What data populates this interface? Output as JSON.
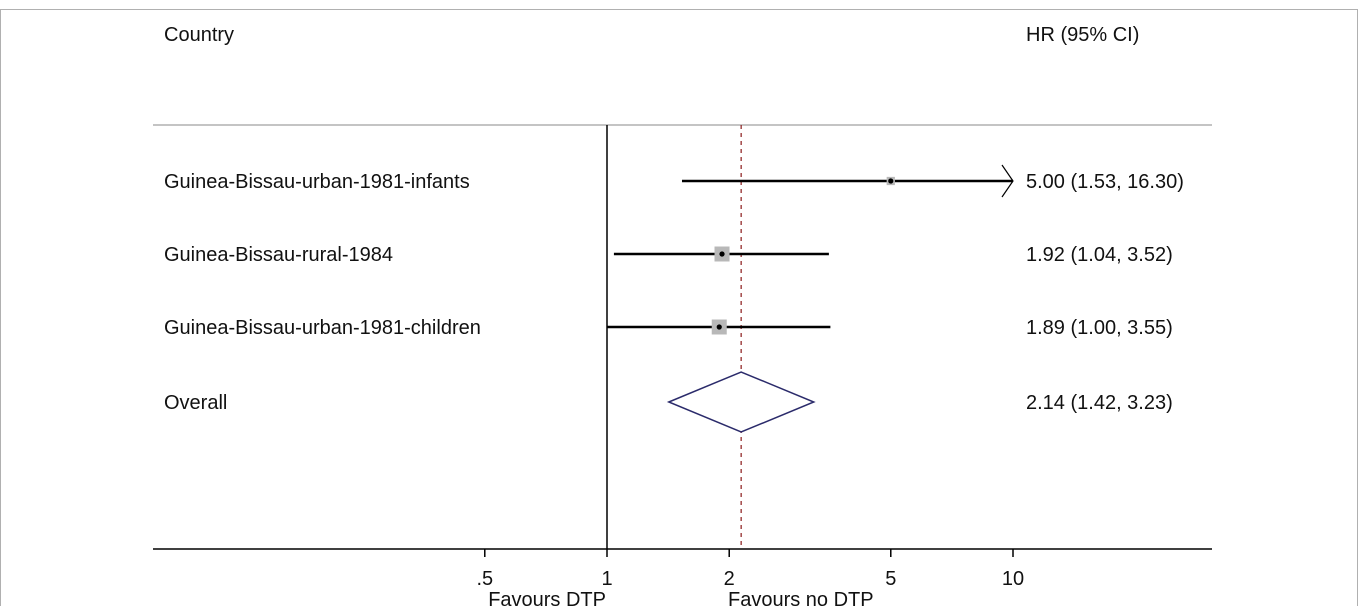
{
  "chart_data": {
    "type": "forest",
    "header": {
      "left": "Country",
      "right": "HR (95% CI)"
    },
    "x_axis": {
      "scale": "log",
      "ticks": [
        0.5,
        1,
        2,
        5,
        10
      ],
      "tick_labels": [
        ".5",
        "1",
        "2",
        "5",
        "10"
      ],
      "range": [
        0.33,
        13.2
      ]
    },
    "favours": {
      "left": "Favours DTP",
      "right": "Favours no DTP"
    },
    "null_line": 1,
    "overall_line": 2.14,
    "studies": [
      {
        "label": "Guinea-Bissau-urban-1981-infants",
        "hr": 5.0,
        "lo": 1.53,
        "hi": 16.3,
        "text": "5.00 (1.53, 16.30)",
        "weight": 0.25,
        "arrow_right": true
      },
      {
        "label": "Guinea-Bissau-rural-1984",
        "hr": 1.92,
        "lo": 1.04,
        "hi": 3.52,
        "text": "1.92 (1.04, 3.52)",
        "weight": 1.0
      },
      {
        "label": "Guinea-Bissau-urban-1981-children",
        "hr": 1.89,
        "lo": 1.0,
        "hi": 3.55,
        "text": "1.89 (1.00, 3.55)",
        "weight": 1.0
      }
    ],
    "overall": {
      "label": "Overall",
      "hr": 2.14,
      "lo": 1.42,
      "hi": 3.23,
      "text": "2.14 (1.42, 3.23)"
    },
    "colors": {
      "line": "#000000",
      "box": "#b8b8b8",
      "diamond": "#2b2b6b",
      "ref_line": "#8b1a1a",
      "frame": "#b0b0b0"
    }
  }
}
